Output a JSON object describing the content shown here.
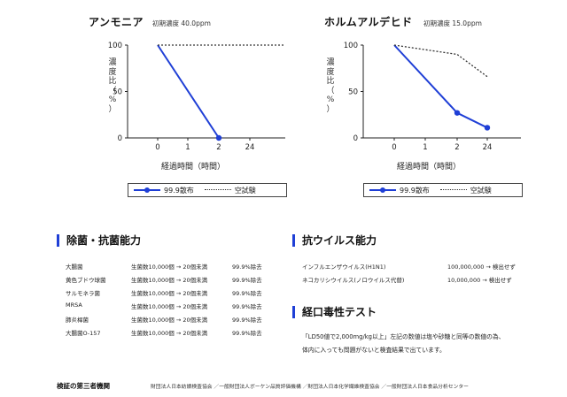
{
  "chart_data": [
    {
      "type": "line",
      "title": "アンモニア",
      "subtitle": "初期濃度 40.0ppm",
      "xlabel": "経過時間（時間）",
      "ylabel": "濃度比（%）",
      "categories": [
        "0",
        "1",
        "2",
        "24"
      ],
      "ylim": [
        0,
        100
      ],
      "yticks": [
        "0",
        "50",
        "100"
      ],
      "series": [
        {
          "name": "99.9散布",
          "values": [
            100,
            null,
            0,
            null
          ],
          "color": "#1f3fd6",
          "style": "solid-marker"
        },
        {
          "name": "空試験",
          "values": [
            100,
            100,
            100,
            100
          ],
          "color": "#333333",
          "style": "dotted"
        }
      ],
      "legend": "bottom"
    },
    {
      "type": "line",
      "title": "ホルムアルデヒド",
      "subtitle": "初期濃度 15.0ppm",
      "xlabel": "経過時間（時間）",
      "ylabel": "濃度比（%）",
      "categories": [
        "0",
        "1",
        "2",
        "24"
      ],
      "ylim": [
        0,
        100
      ],
      "yticks": [
        "0",
        "50",
        "100"
      ],
      "series": [
        {
          "name": "99.9散布",
          "values": [
            100,
            null,
            27,
            11
          ],
          "color": "#1f3fd6",
          "style": "solid-marker"
        },
        {
          "name": "空試験",
          "values": [
            100,
            null,
            90,
            66
          ],
          "color": "#333333",
          "style": "dotted"
        }
      ],
      "legend": "bottom"
    }
  ],
  "charts_text": [
    {
      "ylabel_chars": [
        "濃",
        "度",
        "比",
        "（",
        "%",
        "）"
      ]
    },
    {
      "ylabel_chars": [
        "濃",
        "度",
        "比",
        "（",
        "%",
        "）"
      ]
    }
  ],
  "legend": {
    "treated": "99.9散布",
    "blank": "空試験"
  },
  "antibacterial": {
    "title": "除菌・抗菌能力",
    "rows": [
      {
        "name": "大腸菌",
        "result": "生菌数10,000個 → 20個未満",
        "rate": "99.9%除去"
      },
      {
        "name": "黄色ブドウ球菌",
        "result": "生菌数10,000個 → 20個未満",
        "rate": "99.9%除去"
      },
      {
        "name": "サルモネラ菌",
        "result": "生菌数10,000個 → 20個未満",
        "rate": "99.9%除去"
      },
      {
        "name": "MRSA",
        "result": "生菌数10,000個 → 20個未満",
        "rate": "99.9%除去"
      },
      {
        "name": "肺炎桿菌",
        "result": "生菌数10,000個 → 20個未満",
        "rate": "99.9%除去"
      },
      {
        "name": "大腸菌O-157",
        "result": "生菌数10,000個 → 20個未満",
        "rate": "99.9%除去"
      }
    ]
  },
  "antivirus": {
    "title": "抗ウイルス能力",
    "rows": [
      {
        "name": "インフルエンザウイルス(H1N1)",
        "result": "100,000,000 → 検出せず"
      },
      {
        "name": "ネコカリシウイルス(ノロウイルス代替)",
        "result": "10,000,000 → 検出せず"
      }
    ]
  },
  "toxicity": {
    "title": "経口毒性テスト",
    "line1": "「LD50値で2,000mg/kg以上」左記の数値は塩や砂糖と同等の数値の為、",
    "line2": "体内に入っても問題がないと検査結果で出ています。"
  },
  "footer": {
    "label": "検証の第三者機関",
    "text": "財団法人日本紡績検査協会 ／一般財団法人ボーケン品質評価機構 ／財団法人日本化学繊維検査協会 ／一般財団法人日本食品分析センター"
  }
}
